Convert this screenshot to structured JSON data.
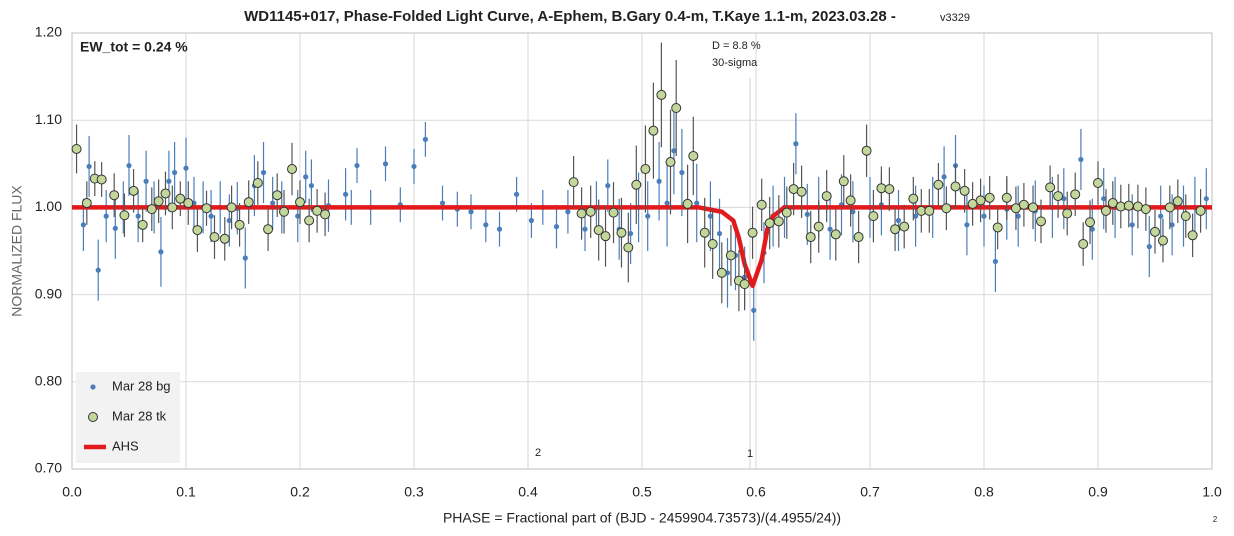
{
  "chart_data": {
    "type": "scatter",
    "title": "WD1145+017, Phase-Folded Light Curve, A-Ephem, B.Gary 0.4-m, T.Kaye 1.1-m, 2023.03.28 -",
    "title_suffix": "v3329",
    "x_label": "PHASE = Fractional part of (BJD - 2459904.73573)/(4.4955/24))",
    "y_label": "NORMALIZED FLUX",
    "annotations": [
      "EW_tot = 0.24 %",
      "D = 8.8 %",
      "30-sigma",
      "2",
      "1",
      "2"
    ],
    "xlim": [
      0,
      1
    ],
    "ylim": [
      0.7,
      1.2
    ],
    "xticks": [
      {
        "value": 0,
        "label": "0.0"
      },
      {
        "value": 0.1,
        "label": "0.1"
      },
      {
        "value": 0.2,
        "label": "0.2"
      },
      {
        "value": 0.3,
        "label": "0.3"
      },
      {
        "value": 0.4,
        "label": "0.4"
      },
      {
        "value": 0.5,
        "label": "0.5"
      },
      {
        "value": 0.6,
        "label": "0.6"
      },
      {
        "value": 0.7,
        "label": "0.7"
      },
      {
        "value": 0.8,
        "label": "0.8"
      },
      {
        "value": 0.9,
        "label": "0.9"
      },
      {
        "value": 1,
        "label": "1.0"
      }
    ],
    "yticks": [
      {
        "value": 0.7,
        "label": "0.70"
      },
      {
        "value": 0.8,
        "label": "0.80"
      },
      {
        "value": 0.9,
        "label": "0.90"
      },
      {
        "value": 1.0,
        "label": "1.00"
      },
      {
        "value": 1.1,
        "label": "1.10"
      },
      {
        "value": 1.2,
        "label": "1.20"
      }
    ],
    "grid": true,
    "legend": "lower left",
    "series": [
      {
        "name": "Mar 28 bg",
        "type": "scatter",
        "color": "#4a7ebb",
        "x": [
          0.01,
          0.015,
          0.023,
          0.03,
          0.038,
          0.045,
          0.05,
          0.058,
          0.065,
          0.072,
          0.078,
          0.085,
          0.09,
          0.1,
          0.107,
          0.115,
          0.122,
          0.13,
          0.138,
          0.145,
          0.152,
          0.16,
          0.168,
          0.176,
          0.184,
          0.198,
          0.205,
          0.21,
          0.225,
          0.24,
          0.245,
          0.25,
          0.262,
          0.275,
          0.288,
          0.3,
          0.31,
          0.325,
          0.338,
          0.35,
          0.363,
          0.375,
          0.39,
          0.403,
          0.413,
          0.425,
          0.435,
          0.45,
          0.46,
          0.47,
          0.48,
          0.49,
          0.497,
          0.505,
          0.515,
          0.522,
          0.528,
          0.535,
          0.548,
          0.56,
          0.568,
          0.575,
          0.582,
          0.59,
          0.598,
          0.607,
          0.615,
          0.625,
          0.635,
          0.645,
          0.655,
          0.665,
          0.675,
          0.685,
          0.7,
          0.71,
          0.725,
          0.74,
          0.755,
          0.765,
          0.775,
          0.785,
          0.8,
          0.81,
          0.82,
          0.83,
          0.845,
          0.86,
          0.87,
          0.885,
          0.895,
          0.905,
          0.915,
          0.93,
          0.945,
          0.955,
          0.965,
          0.975,
          0.985,
          0.995
        ],
        "values": [
          0.98,
          1.047,
          0.928,
          0.99,
          0.976,
          1.0,
          1.048,
          0.99,
          1.03,
          1.0,
          0.949,
          1.03,
          1.04,
          1.045,
          1.005,
          1.0,
          0.99,
          1.0,
          0.985,
          0.999,
          0.942,
          1.025,
          1.04,
          1.005,
          1.0,
          0.99,
          1.035,
          1.025,
          1.002,
          1.015,
          1.0,
          1.048,
          1.0,
          1.05,
          1.003,
          1.047,
          1.078,
          1.005,
          0.998,
          0.995,
          0.98,
          0.975,
          1.015,
          0.985,
          1.0,
          0.978,
          0.995,
          0.975,
          1.0,
          1.025,
          0.975,
          0.97,
          1.0,
          0.99,
          1.03,
          1.005,
          1.065,
          1.04,
          1.005,
          0.99,
          0.97,
          0.925,
          0.945,
          0.92,
          0.882,
          0.948,
          0.99,
          1.0,
          1.073,
          0.992,
          1.0,
          0.975,
          1.003,
          0.995,
          1.0,
          1.003,
          0.985,
          0.99,
          1.0,
          1.035,
          1.048,
          0.98,
          0.99,
          0.938,
          0.998,
          0.99,
          0.996,
          1.0,
          1.01,
          1.055,
          0.975,
          1.01,
          1.0,
          0.98,
          0.955,
          0.99,
          0.98,
          0.99,
          1.0,
          1.01
        ],
        "errors": [
          0.03,
          0.035,
          0.035,
          0.03,
          0.035,
          0.03,
          0.035,
          0.03,
          0.035,
          0.03,
          0.04,
          0.035,
          0.035,
          0.035,
          0.03,
          0.03,
          0.03,
          0.03,
          0.03,
          0.03,
          0.035,
          0.035,
          0.035,
          0.03,
          0.03,
          0.03,
          0.03,
          0.03,
          0.03,
          0.03,
          0.02,
          0.02,
          0.02,
          0.02,
          0.02,
          0.02,
          0.02,
          0.02,
          0.02,
          0.02,
          0.02,
          0.02,
          0.02,
          0.02,
          0.02,
          0.025,
          0.025,
          0.025,
          0.03,
          0.03,
          0.035,
          0.035,
          0.04,
          0.04,
          0.045,
          0.05,
          0.05,
          0.05,
          0.045,
          0.04,
          0.04,
          0.04,
          0.04,
          0.035,
          0.035,
          0.035,
          0.035,
          0.035,
          0.035,
          0.035,
          0.035,
          0.035,
          0.035,
          0.035,
          0.035,
          0.035,
          0.035,
          0.035,
          0.035,
          0.035,
          0.035,
          0.035,
          0.035,
          0.035,
          0.035,
          0.035,
          0.035,
          0.035,
          0.035,
          0.035,
          0.035,
          0.035,
          0.035,
          0.035,
          0.035,
          0.035,
          0.035,
          0.035,
          0.035,
          0.035
        ]
      },
      {
        "name": "Mar 28 tk",
        "type": "scatter",
        "color": "#c4d79b",
        "x": [
          0.004,
          0.013,
          0.02,
          0.026,
          0.037,
          0.046,
          0.054,
          0.062,
          0.07,
          0.076,
          0.082,
          0.088,
          0.095,
          0.102,
          0.11,
          0.118,
          0.125,
          0.134,
          0.14,
          0.147,
          0.155,
          0.163,
          0.172,
          0.18,
          0.186,
          0.193,
          0.2,
          0.208,
          0.215,
          0.222,
          0.44,
          0.447,
          0.455,
          0.462,
          0.468,
          0.475,
          0.482,
          0.488,
          0.495,
          0.503,
          0.51,
          0.517,
          0.525,
          0.53,
          0.54,
          0.545,
          0.555,
          0.562,
          0.57,
          0.578,
          0.585,
          0.59,
          0.597,
          0.605,
          0.612,
          0.62,
          0.627,
          0.633,
          0.64,
          0.648,
          0.655,
          0.662,
          0.67,
          0.677,
          0.683,
          0.69,
          0.697,
          0.703,
          0.71,
          0.717,
          0.722,
          0.73,
          0.738,
          0.745,
          0.752,
          0.76,
          0.767,
          0.775,
          0.783,
          0.79,
          0.797,
          0.805,
          0.812,
          0.82,
          0.828,
          0.835,
          0.843,
          0.85,
          0.858,
          0.865,
          0.873,
          0.88,
          0.887,
          0.893,
          0.9,
          0.907,
          0.913,
          0.92,
          0.927,
          0.935,
          0.942,
          0.95,
          0.957,
          0.963,
          0.97,
          0.977,
          0.983,
          0.99
        ],
        "values": [
          1.067,
          1.005,
          1.033,
          1.032,
          1.014,
          0.991,
          1.019,
          0.98,
          0.998,
          1.007,
          1.016,
          1.0,
          1.01,
          1.005,
          0.974,
          0.999,
          0.966,
          0.964,
          1.0,
          0.98,
          1.006,
          1.028,
          0.975,
          1.014,
          0.995,
          1.044,
          1.006,
          0.985,
          0.996,
          0.992,
          1.029,
          0.993,
          0.995,
          0.974,
          0.967,
          0.994,
          0.971,
          0.954,
          1.026,
          1.044,
          1.088,
          1.129,
          1.052,
          1.114,
          1.004,
          1.059,
          0.971,
          0.958,
          0.925,
          0.945,
          0.916,
          0.912,
          0.971,
          1.003,
          0.982,
          0.984,
          0.994,
          1.021,
          1.018,
          0.966,
          0.978,
          1.013,
          0.969,
          1.03,
          1.008,
          0.966,
          1.065,
          0.99,
          1.022,
          1.021,
          0.975,
          0.978,
          1.01,
          0.996,
          0.996,
          1.026,
          0.999,
          1.024,
          1.019,
          1.004,
          1.008,
          1.011,
          0.977,
          1.011,
          0.999,
          1.003,
          1.0,
          0.984,
          1.023,
          1.013,
          0.993,
          1.015,
          0.958,
          0.983,
          1.028,
          0.996,
          1.005,
          1.001,
          1.002,
          1.001,
          0.998,
          0.972,
          0.962,
          1.0,
          1.007,
          0.99,
          0.968,
          0.996
        ],
        "errors": [
          0.028,
          0.025,
          0.02,
          0.02,
          0.025,
          0.025,
          0.025,
          0.02,
          0.025,
          0.025,
          0.025,
          0.025,
          0.02,
          0.025,
          0.025,
          0.02,
          0.025,
          0.025,
          0.025,
          0.025,
          0.025,
          0.025,
          0.025,
          0.025,
          0.025,
          0.03,
          0.025,
          0.025,
          0.025,
          0.025,
          0.03,
          0.03,
          0.03,
          0.035,
          0.035,
          0.035,
          0.04,
          0.04,
          0.045,
          0.05,
          0.055,
          0.06,
          0.06,
          0.055,
          0.045,
          0.045,
          0.04,
          0.04,
          0.035,
          0.035,
          0.035,
          0.03,
          0.03,
          0.03,
          0.03,
          0.03,
          0.03,
          0.03,
          0.03,
          0.03,
          0.03,
          0.03,
          0.03,
          0.03,
          0.03,
          0.03,
          0.03,
          0.03,
          0.025,
          0.025,
          0.025,
          0.025,
          0.025,
          0.025,
          0.025,
          0.025,
          0.025,
          0.025,
          0.025,
          0.025,
          0.025,
          0.025,
          0.025,
          0.025,
          0.025,
          0.025,
          0.025,
          0.025,
          0.025,
          0.025,
          0.025,
          0.025,
          0.025,
          0.025,
          0.025,
          0.025,
          0.025,
          0.025,
          0.025,
          0.025,
          0.025,
          0.025,
          0.025,
          0.025,
          0.025,
          0.025,
          0.025,
          0.025
        ]
      },
      {
        "name": "AHS",
        "type": "line",
        "color": "#e31a1c",
        "x": [
          0,
          0.55,
          0.57,
          0.58,
          0.585,
          0.59,
          0.597,
          0.605,
          0.61,
          0.615,
          0.625,
          1
        ],
        "values": [
          1.0,
          1.0,
          0.995,
          0.985,
          0.965,
          0.935,
          0.91,
          0.94,
          0.975,
          0.99,
          1.0,
          1.0
        ]
      }
    ]
  }
}
